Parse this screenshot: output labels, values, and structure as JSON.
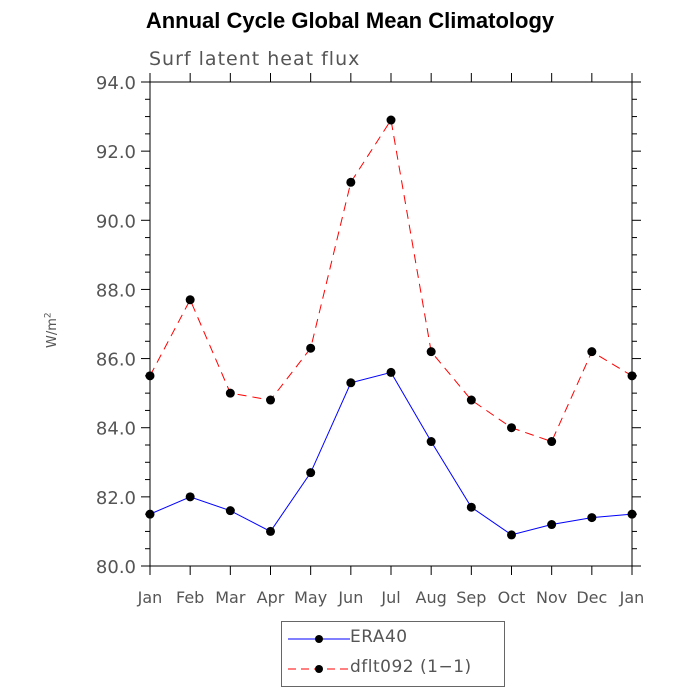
{
  "title": "Annual Cycle Global Mean Climatology",
  "subtitle": "Surf latent heat flux",
  "ylabel_text": "W/m",
  "ylabel_sup": "2",
  "legend": [
    {
      "name": "ERA40",
      "color": "#0000ff",
      "dash": "solid"
    },
    {
      "name": "dflt092 (1−1)",
      "color": "#ff0000",
      "dash": "dashed"
    }
  ],
  "chart_data": {
    "type": "line",
    "categories": [
      "Jan",
      "Feb",
      "Mar",
      "Apr",
      "May",
      "Jun",
      "Jul",
      "Aug",
      "Sep",
      "Oct",
      "Nov",
      "Dec",
      "Jan"
    ],
    "ylim": [
      80.0,
      94.0
    ],
    "yticks": [
      "80.0",
      "82.0",
      "84.0",
      "86.0",
      "88.0",
      "90.0",
      "92.0",
      "94.0"
    ],
    "series": [
      {
        "name": "ERA40",
        "color": "#0000ff",
        "values": [
          81.5,
          82.0,
          81.6,
          81.0,
          82.7,
          85.3,
          85.6,
          83.6,
          81.7,
          80.9,
          81.2,
          81.4,
          81.5
        ]
      },
      {
        "name": "dflt092 (1−1)",
        "color": "#ff0000",
        "values": [
          85.5,
          87.7,
          85.0,
          84.8,
          86.3,
          91.1,
          92.9,
          86.2,
          84.8,
          84.0,
          83.6,
          86.2,
          85.5
        ]
      }
    ]
  }
}
